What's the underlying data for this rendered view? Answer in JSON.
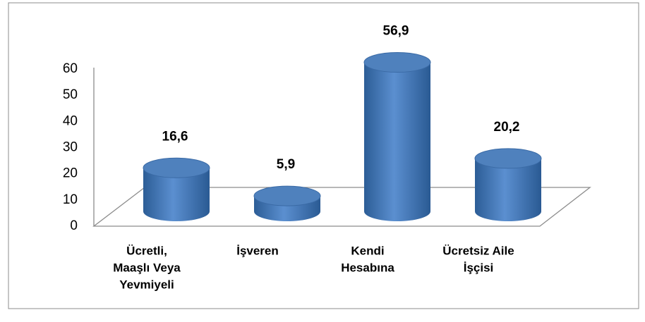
{
  "chart_data": {
    "type": "bar3d",
    "categories": [
      [
        "Ücretli,",
        "Maaşlı Veya",
        "Yevmiyeli"
      ],
      [
        "İşveren"
      ],
      [
        "Kendi",
        "Hesabına"
      ],
      [
        "Ücretsiz Aile",
        "İşçisi"
      ]
    ],
    "values": [
      16.6,
      5.9,
      56.9,
      20.2
    ],
    "value_labels": [
      "16,6",
      "5,9",
      "56,9",
      "20,2"
    ],
    "color": "#4f81bd",
    "ylim": [
      0,
      60
    ],
    "yticks": [
      0,
      10,
      20,
      30,
      40,
      50,
      60
    ],
    "grid": false
  }
}
